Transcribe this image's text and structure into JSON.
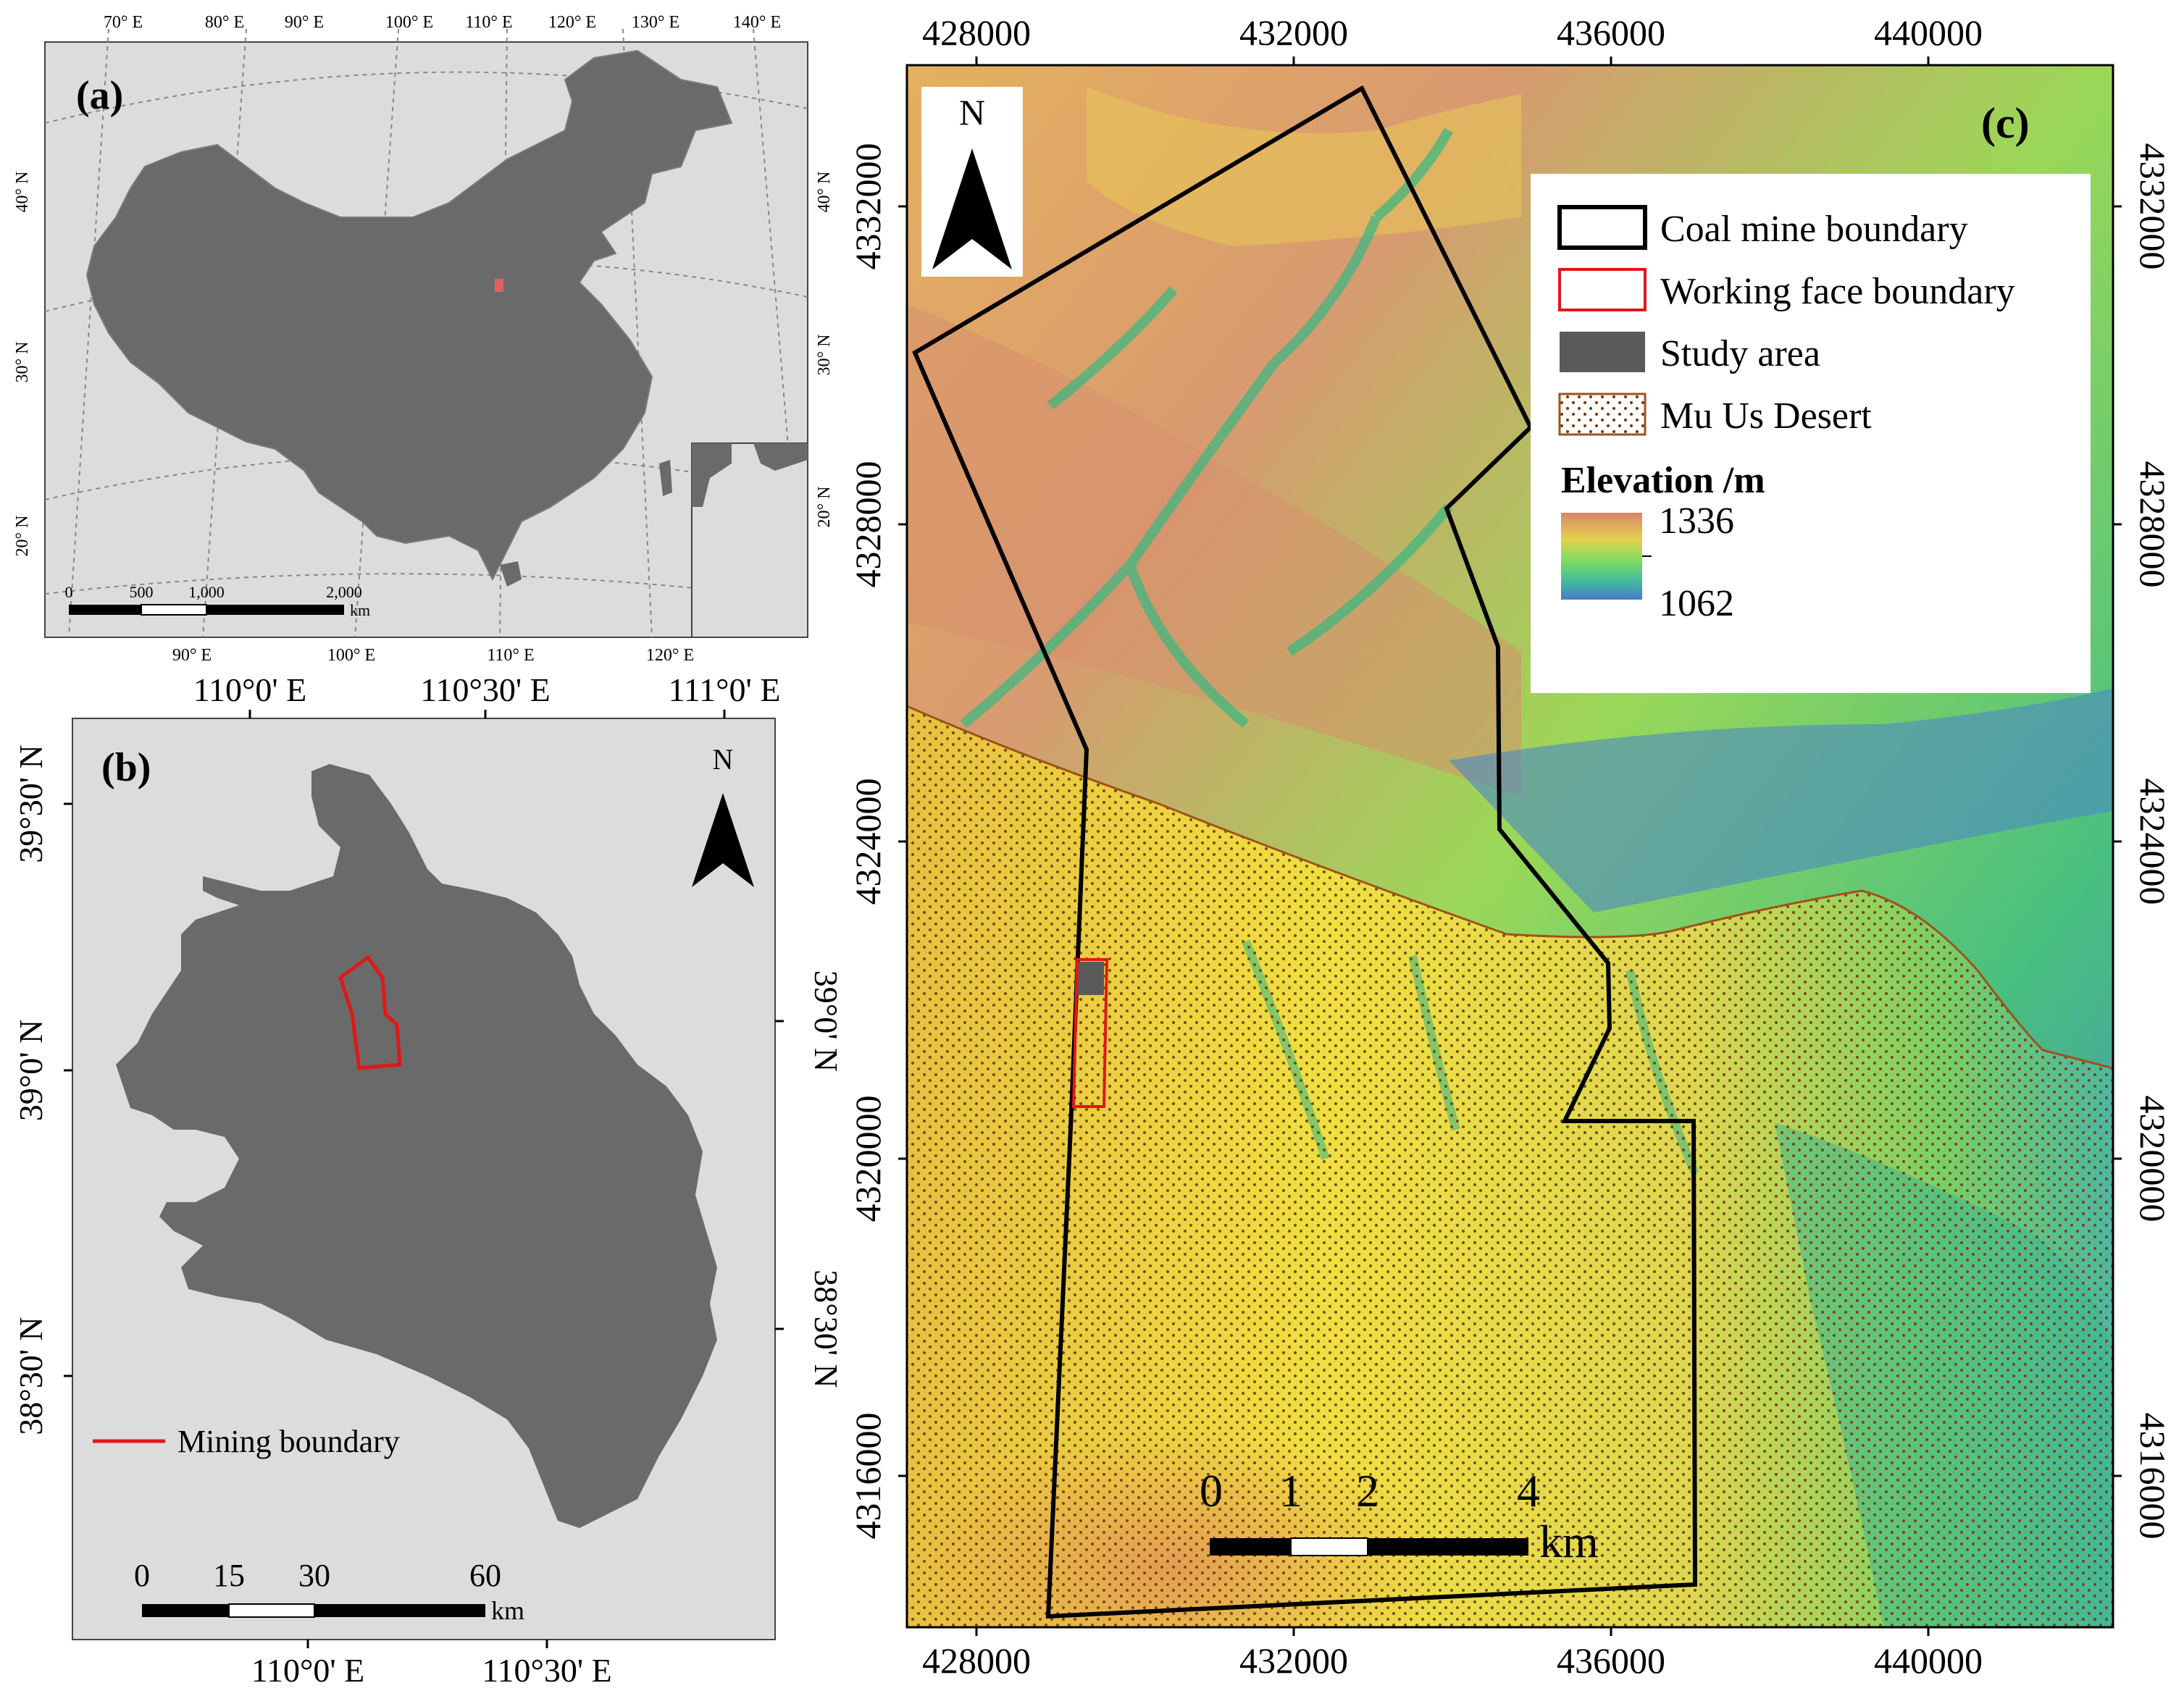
{
  "panel_a": {
    "label": "(a)",
    "top_lon_ticks": [
      "70° E",
      "80° E",
      "90° E",
      "100° E",
      "110° E",
      "120° E",
      "130° E",
      "140° E"
    ],
    "bottom_lon_ticks": [
      "90° E",
      "100° E",
      "110° E",
      "120° E"
    ],
    "left_lat_ticks": [
      "40° N",
      "30° N",
      "20° N"
    ],
    "right_lat_ticks": [
      "40° N",
      "30° N",
      "20° N"
    ],
    "scale_ticks": [
      "0",
      "500",
      "1,000",
      "2,000"
    ],
    "scale_unit": "km"
  },
  "panel_b": {
    "label": "(b)",
    "north_label": "N",
    "top_lon_ticks": [
      "110°0' E",
      "110°30' E",
      "111°0' E"
    ],
    "bottom_lon_ticks": [
      "110°0' E",
      "110°30' E"
    ],
    "left_lat_ticks": [
      "39°30' N",
      "39°0' N",
      "38°30' N"
    ],
    "right_lat_ticks": [
      "39°0' N",
      "38°30' N"
    ],
    "legend_mining": "Mining boundary",
    "scale_ticks": [
      "0",
      "15",
      "30",
      "60"
    ],
    "scale_unit": "km"
  },
  "panel_c": {
    "label": "(c)",
    "north_label": "N",
    "x_ticks": [
      "428000",
      "432000",
      "436000",
      "440000"
    ],
    "y_ticks": [
      "4332000",
      "4328000",
      "4324000",
      "4320000",
      "4316000"
    ],
    "legend": {
      "coal_mine": "Coal mine boundary",
      "working_face": "Working face boundary",
      "study_area": "Study area",
      "desert": "Mu Us Desert",
      "elevation_title": "Elevation /m",
      "elev_max": "1336",
      "elev_min": "1062"
    },
    "scale_ticks": [
      "0",
      "1",
      "2",
      "4"
    ],
    "scale_unit": "km",
    "colors": {
      "coal_mine": "#000000",
      "working_face": "#e02020",
      "study_area": "#5a5a5a",
      "desert_dots": "#8a4a10",
      "desert_line": "#a0521a"
    }
  }
}
